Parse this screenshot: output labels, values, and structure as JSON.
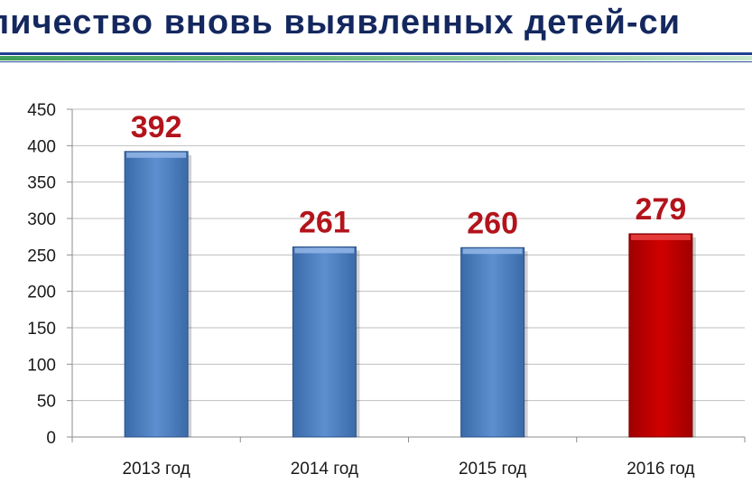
{
  "header": {
    "title_visible": "личество вновь выявленных детей-си"
  },
  "colors": {
    "bar_default": "#4f81c2",
    "bar_highlight": "#c00000",
    "data_label": "#b3141c",
    "title": "#14285f"
  },
  "chart_data": {
    "type": "bar",
    "categories": [
      "2013 год",
      "2014 год",
      "2015 год",
      "2016 год"
    ],
    "values": [
      392,
      261,
      260,
      279
    ],
    "data_labels": [
      "392",
      "261",
      "260",
      "279"
    ],
    "highlight_index": 3,
    "ylim": [
      0,
      450
    ],
    "yticks": [
      0,
      50,
      100,
      150,
      200,
      250,
      300,
      350,
      400,
      450
    ],
    "grid": true,
    "legend": "none"
  }
}
